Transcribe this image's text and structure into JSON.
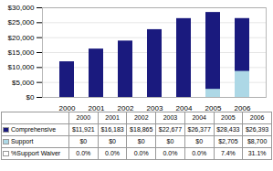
{
  "chart_data": {
    "type": "bar",
    "categories": [
      "2000",
      "2001",
      "2002",
      "2003",
      "2004",
      "2005",
      "2006"
    ],
    "series": [
      {
        "name": "Comprehensive",
        "color": "#1a1a7e",
        "values": [
          11921,
          16183,
          18865,
          22677,
          26377,
          28433,
          26393
        ],
        "value_labels": [
          "$11,921",
          "$16,183",
          "$18,865",
          "$22,677",
          "$26,377",
          "$28,433",
          "$26,393"
        ]
      },
      {
        "name": "Support",
        "color": "#add8e6",
        "values": [
          0,
          0,
          0,
          0,
          0,
          2705,
          8700
        ],
        "value_labels": [
          "$0",
          "$0",
          "$0",
          "$0",
          "$0",
          "$2,705",
          "$8,700"
        ]
      }
    ],
    "support_waiver": {
      "name": "%Support Waiver",
      "color": "#ffffff",
      "values": [
        0.0,
        0.0,
        0.0,
        0.0,
        0.0,
        7.4,
        31.1
      ],
      "value_labels": [
        "0.0%",
        "0.0%",
        "0.0%",
        "0.0%",
        "0.0%",
        "7.4%",
        "31.1%"
      ]
    },
    "stacked": false,
    "ylim": [
      0,
      30000
    ],
    "yticks": [
      {
        "value": 0,
        "label": "$0"
      },
      {
        "value": 5000,
        "label": "$5,000"
      },
      {
        "value": 10000,
        "label": "$10,000"
      },
      {
        "value": 15000,
        "label": "$15,000"
      },
      {
        "value": 20000,
        "label": "$20,000"
      },
      {
        "value": 25000,
        "label": "$25,000"
      },
      {
        "value": 30000,
        "label": "$30,000"
      }
    ],
    "grid": true
  }
}
